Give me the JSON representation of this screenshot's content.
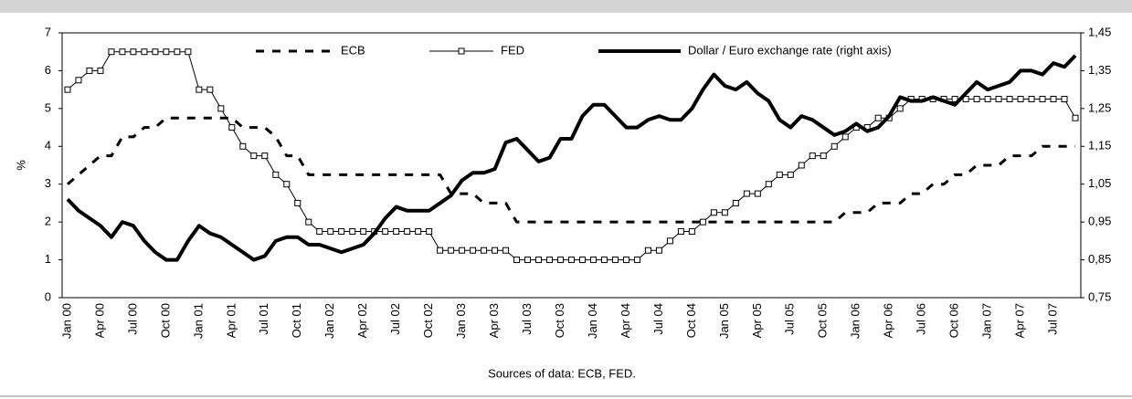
{
  "chart_data": {
    "type": "line",
    "y_label": "%",
    "footer": "Sources of data: ECB, FED.",
    "legend": "top",
    "categories": [
      "Jan 00",
      null,
      null,
      "Apr 00",
      null,
      null,
      "Jul 00",
      null,
      null,
      "Oct 00",
      null,
      null,
      "Jan 01",
      null,
      null,
      "Apr 01",
      null,
      null,
      "Jul 01",
      null,
      null,
      "Oct 01",
      null,
      null,
      "Jan 02",
      null,
      null,
      "Apr 02",
      null,
      null,
      "Jul 02",
      null,
      null,
      "Oct 02",
      null,
      null,
      "Jan 03",
      null,
      null,
      "Apr 03",
      null,
      null,
      "Jul 03",
      null,
      null,
      "Oct 03",
      null,
      null,
      "Jan 04",
      null,
      null,
      "Apr 04",
      null,
      null,
      "Jul 04",
      null,
      null,
      "Oct 04",
      null,
      null,
      "Jan 05",
      null,
      null,
      "Apr 05",
      null,
      null,
      "Jul 05",
      null,
      null,
      "Oct 05",
      null,
      null,
      "Jan 06",
      null,
      null,
      "Apr 06",
      null,
      null,
      "Jul 06",
      null,
      null,
      "Oct 06",
      null,
      null,
      "Jan 07",
      null,
      null,
      "Apr 07",
      null,
      null,
      "Jul 07",
      null,
      null
    ],
    "ylim": [
      0,
      7
    ],
    "yticks": [
      0,
      1,
      2,
      3,
      4,
      5,
      6,
      7
    ],
    "y2lim": [
      0.75,
      1.45
    ],
    "y2ticks": [
      {
        "value": 0.75,
        "label": "0,75"
      },
      {
        "value": 0.85,
        "label": "0,85"
      },
      {
        "value": 0.95,
        "label": "0,95"
      },
      {
        "value": 1.05,
        "label": "1,05"
      },
      {
        "value": 1.15,
        "label": "1,15"
      },
      {
        "value": 1.25,
        "label": "1,25"
      },
      {
        "value": 1.35,
        "label": "1,35"
      },
      {
        "value": 1.45,
        "label": "1,45"
      }
    ],
    "series": [
      {
        "name": "ECB",
        "color": "#000000",
        "style": "dashed",
        "values": [
          3.0,
          3.25,
          3.5,
          3.75,
          3.75,
          4.25,
          4.25,
          4.5,
          4.5,
          4.75,
          4.75,
          4.75,
          4.75,
          4.75,
          4.75,
          4.75,
          4.5,
          4.5,
          4.5,
          4.25,
          3.75,
          3.75,
          3.25,
          3.25,
          3.25,
          3.25,
          3.25,
          3.25,
          3.25,
          3.25,
          3.25,
          3.25,
          3.25,
          3.25,
          3.25,
          2.75,
          2.75,
          2.75,
          2.5,
          2.5,
          2.5,
          2.0,
          2.0,
          2.0,
          2.0,
          2.0,
          2.0,
          2.0,
          2.0,
          2.0,
          2.0,
          2.0,
          2.0,
          2.0,
          2.0,
          2.0,
          2.0,
          2.0,
          2.0,
          2.0,
          2.0,
          2.0,
          2.0,
          2.0,
          2.0,
          2.0,
          2.0,
          2.0,
          2.0,
          2.0,
          2.0,
          2.25,
          2.25,
          2.25,
          2.5,
          2.5,
          2.5,
          2.75,
          2.75,
          3.0,
          3.0,
          3.25,
          3.25,
          3.5,
          3.5,
          3.5,
          3.75,
          3.75,
          3.75,
          4.0,
          4.0,
          4.0,
          4.0
        ]
      },
      {
        "name": "FED",
        "color": "#000000",
        "style": "marker",
        "values": [
          5.5,
          5.75,
          6.0,
          6.0,
          6.5,
          6.5,
          6.5,
          6.5,
          6.5,
          6.5,
          6.5,
          6.5,
          5.5,
          5.5,
          5.0,
          4.5,
          4.0,
          3.75,
          3.75,
          3.25,
          3.0,
          2.5,
          2.0,
          1.75,
          1.75,
          1.75,
          1.75,
          1.75,
          1.75,
          1.75,
          1.75,
          1.75,
          1.75,
          1.75,
          1.25,
          1.25,
          1.25,
          1.25,
          1.25,
          1.25,
          1.25,
          1.0,
          1.0,
          1.0,
          1.0,
          1.0,
          1.0,
          1.0,
          1.0,
          1.0,
          1.0,
          1.0,
          1.0,
          1.25,
          1.25,
          1.5,
          1.75,
          1.75,
          2.0,
          2.25,
          2.25,
          2.5,
          2.75,
          2.75,
          3.0,
          3.25,
          3.25,
          3.5,
          3.75,
          3.75,
          4.0,
          4.25,
          4.5,
          4.5,
          4.75,
          4.75,
          5.0,
          5.25,
          5.25,
          5.25,
          5.25,
          5.25,
          5.25,
          5.25,
          5.25,
          5.25,
          5.25,
          5.25,
          5.25,
          5.25,
          5.25,
          5.25,
          4.75
        ]
      },
      {
        "name": "Dollar / Euro exchange rate (right axis)",
        "color": "#000000",
        "style": "thick",
        "axis": "y2",
        "values": [
          1.01,
          0.98,
          0.96,
          0.94,
          0.91,
          0.95,
          0.94,
          0.9,
          0.87,
          0.85,
          0.85,
          0.9,
          0.94,
          0.92,
          0.91,
          0.89,
          0.87,
          0.85,
          0.86,
          0.9,
          0.91,
          0.91,
          0.89,
          0.89,
          0.88,
          0.87,
          0.88,
          0.89,
          0.92,
          0.96,
          0.99,
          0.98,
          0.98,
          0.98,
          1.0,
          1.02,
          1.06,
          1.08,
          1.08,
          1.09,
          1.16,
          1.17,
          1.14,
          1.11,
          1.12,
          1.17,
          1.17,
          1.23,
          1.26,
          1.26,
          1.23,
          1.2,
          1.2,
          1.22,
          1.23,
          1.22,
          1.22,
          1.25,
          1.3,
          1.34,
          1.31,
          1.3,
          1.32,
          1.29,
          1.27,
          1.22,
          1.2,
          1.23,
          1.22,
          1.2,
          1.18,
          1.19,
          1.21,
          1.19,
          1.2,
          1.23,
          1.28,
          1.27,
          1.27,
          1.28,
          1.27,
          1.26,
          1.29,
          1.32,
          1.3,
          1.31,
          1.32,
          1.35,
          1.35,
          1.34,
          1.37,
          1.36,
          1.39
        ]
      }
    ]
  }
}
